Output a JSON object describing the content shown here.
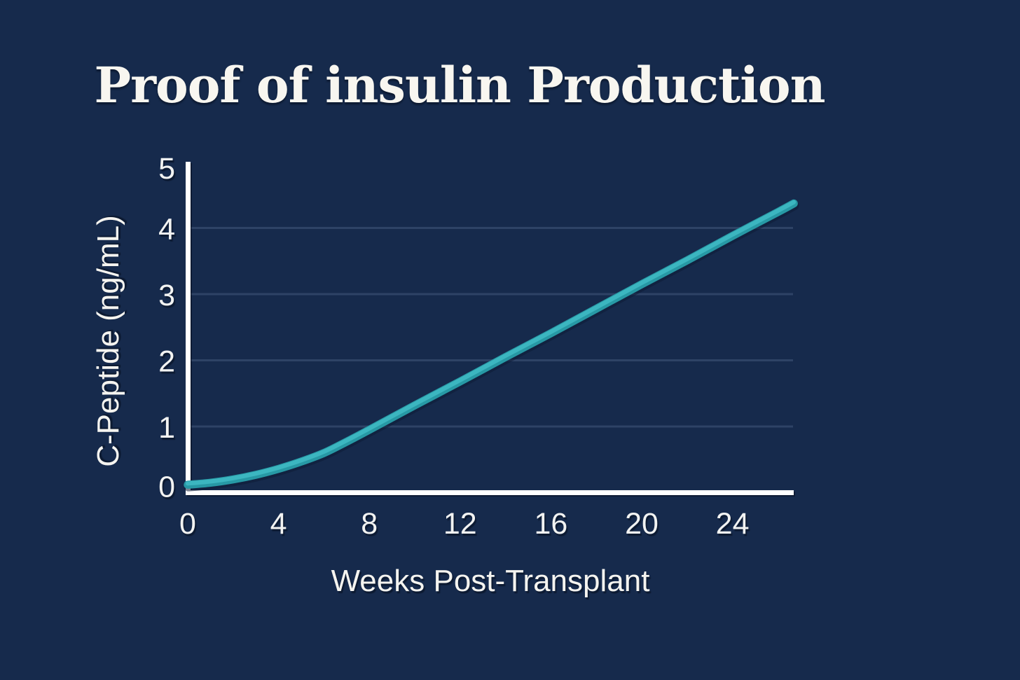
{
  "page": {
    "background": "#162A4C",
    "text_color": "#F5F4F0"
  },
  "header": {
    "title": "Proof of insulin Production",
    "title_color": "#F8F6F0"
  },
  "chart_data": {
    "type": "line",
    "title": "Proof of insulin Production",
    "xlabel": "Weeks Post-Transplant",
    "ylabel": "C-Peptide (ng/mL)",
    "x_ticks": [
      0,
      4,
      8,
      12,
      16,
      20,
      24
    ],
    "y_ticks": [
      0,
      1,
      2,
      3,
      4,
      5
    ],
    "xlim": [
      0,
      26.7
    ],
    "ylim": [
      0,
      5
    ],
    "grid": {
      "horizontal_at": [
        1,
        2,
        3,
        4
      ],
      "vertical": false
    },
    "legend": "none",
    "series": [
      {
        "name": "C-Peptide (ng/mL)",
        "color": "#2BA3AE",
        "points": [
          [
            0,
            0.12
          ],
          [
            1,
            0.15
          ],
          [
            2,
            0.2
          ],
          [
            3,
            0.27
          ],
          [
            4,
            0.36
          ],
          [
            5,
            0.47
          ],
          [
            6,
            0.6
          ],
          [
            7,
            0.77
          ],
          [
            8,
            0.95
          ],
          [
            10,
            1.32
          ],
          [
            12,
            1.68
          ],
          [
            14,
            2.05
          ],
          [
            16,
            2.41
          ],
          [
            18,
            2.78
          ],
          [
            20,
            3.15
          ],
          [
            22,
            3.51
          ],
          [
            24,
            3.88
          ],
          [
            26,
            4.24
          ],
          [
            26.7,
            4.37
          ]
        ]
      }
    ],
    "colors": {
      "background": "#162A4C",
      "axis": "#FFFFFF",
      "grid": "#2E4366",
      "tick_text": "#F2F3F2",
      "line_main": "#2799A5",
      "line_highlight": "#3CB6C0",
      "line_under_shadow": "#0E1C36"
    }
  }
}
